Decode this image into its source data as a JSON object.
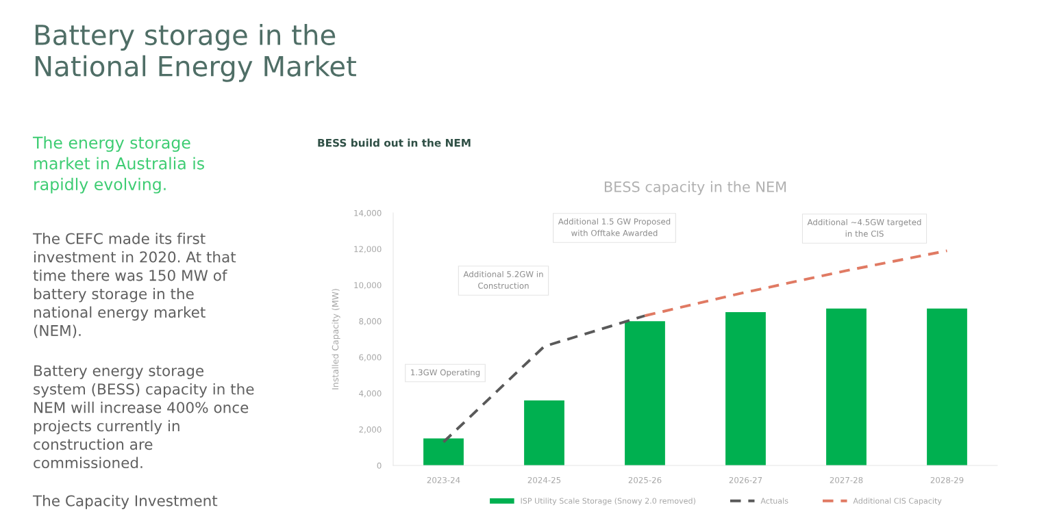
{
  "chart_data": {
    "type": "bar",
    "title": "BESS capacity in the NEM",
    "subtitle": "BESS build out in the NEM",
    "ylabel": "Installed Capacity (MW)",
    "categories": [
      "2023-24",
      "2024-25",
      "2025-26",
      "2026-27",
      "2027-28",
      "2028-29"
    ],
    "series": [
      {
        "name": "ISP Utility Scale Storage (Snowy 2.0 removed)",
        "color": "#00b050",
        "values": [
          1500,
          3600,
          8000,
          8500,
          8700,
          8700
        ]
      },
      {
        "name": "Actuals",
        "type": "line",
        "color": "#595959",
        "values": [
          1300,
          6600,
          8300,
          null,
          null,
          null
        ]
      },
      {
        "name": "Additional CIS Capacity",
        "type": "line",
        "color": "#e07a63",
        "values": [
          null,
          null,
          8300,
          9600,
          10800,
          11900
        ]
      }
    ],
    "ylim": [
      0,
      14000
    ],
    "yticks": [
      0,
      {
        "value": 2000,
        "label": "2,000"
      },
      {
        "value": 4000,
        "label": "4,000"
      },
      {
        "value": 6000,
        "label": "6,000"
      },
      {
        "value": 8000,
        "label": "8,000"
      },
      {
        "value": 10000,
        "label": "10,000"
      },
      {
        "value": 12000,
        "label": "12,000"
      },
      {
        "value": 14000,
        "label": "14,000"
      }
    ],
    "line_style": "dashed",
    "legend": "bottom",
    "annotations": [
      "Battery storage in the\nNational Energy Market",
      "The energy storage\nmarket in Australia is\nrapidly evolving.",
      "The CEFC made its first\ninvestment in 2020. At that\ntime there was 150 MW of\nbattery storage in the\nnational energy market\n(NEM).",
      "Battery energy storage\nsystem (BESS) capacity in the\nNEM will increase 400% once\nprojects currently in\nconstruction are\ncommissioned.",
      "The Capacity Investment",
      "1.3GW Operating",
      "Additional 5.2GW in\nConstruction",
      "Additional 1.5 GW Proposed\nwith Offtake Awarded",
      "Additional ~4.5GW targeted\nin the CIS"
    ]
  }
}
